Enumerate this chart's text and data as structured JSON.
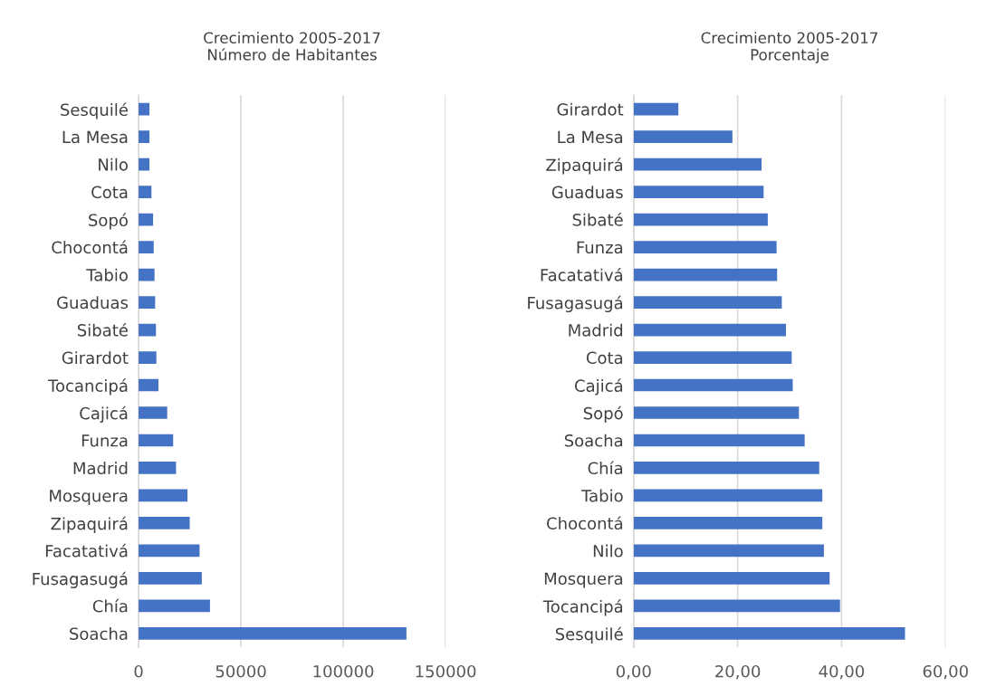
{
  "chart_data": [
    {
      "type": "bar",
      "orientation": "horizontal",
      "title": "Crecimiento 2005-2017\nNúmero de Habitantes",
      "categories": [
        "Sesquilé",
        "La Mesa",
        "Nilo",
        "Cota",
        "Sopó",
        "Chocontá",
        "Tabio",
        "Guaduas",
        "Sibaté",
        "Girardot",
        "Tocancipá",
        "Cajicá",
        "Funza",
        "Madrid",
        "Mosquera",
        "Zipaquirá",
        "Facatativá",
        "Fusagasugá",
        "Chía",
        "Soacha"
      ],
      "values": [
        5300,
        5300,
        5300,
        6300,
        7100,
        7400,
        7800,
        8100,
        8500,
        8700,
        9700,
        14000,
        16900,
        18300,
        23900,
        25000,
        29800,
        30900,
        34900,
        130900
      ],
      "color": "#4472c4",
      "xlim": [
        0,
        150000
      ],
      "xticks": [
        0,
        50000,
        100000,
        150000
      ],
      "grid": "x"
    },
    {
      "type": "bar",
      "orientation": "horizontal",
      "title": "Crecimiento 2005-2017\nPorcentaje",
      "categories": [
        "Girardot",
        "La Mesa",
        "Zipaquirá",
        "Guaduas",
        "Sibaté",
        "Funza",
        "Facatativá",
        "Fusagasugá",
        "Madrid",
        "Cota",
        "Cajicá",
        "Sopó",
        "Soacha",
        "Chía",
        "Tabio",
        "Chocontá",
        "Nilo",
        "Mosquera",
        "Tocancipá",
        "Sesquilé"
      ],
      "values": [
        8.6,
        19.0,
        24.6,
        25.0,
        25.8,
        27.5,
        27.6,
        28.5,
        29.3,
        30.4,
        30.6,
        31.8,
        32.9,
        35.7,
        36.3,
        36.3,
        36.6,
        37.7,
        39.7,
        52.2
      ],
      "color": "#4472c4",
      "xlim": [
        0,
        60
      ],
      "xticks": [
        {
          "value": 0,
          "label": "0,00"
        },
        {
          "value": 20,
          "label": "20,00"
        },
        {
          "value": 40,
          "label": "40,00"
        },
        {
          "value": 60,
          "label": "60,00"
        }
      ],
      "grid": "x"
    }
  ]
}
